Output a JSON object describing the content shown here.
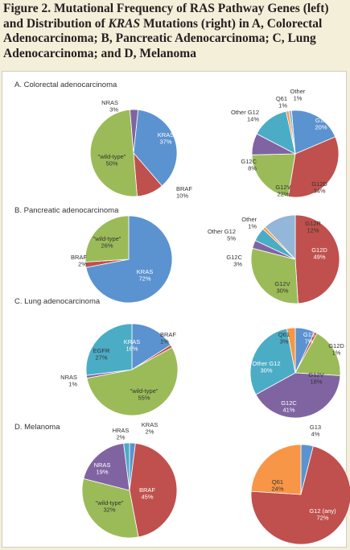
{
  "figure": {
    "title": "Figure 2. Mutational Frequency of RAS Pathway Genes (left) and Distribution of KRAS Mutations (right) in A, Colorectal Adenocarcinoma; B, Pancreatic Adenocarcinoma; C, Lung Adenocarcinoma; and D, Melanoma",
    "title_prefix": "Figure 2. ",
    "title_body": "Mutational Frequency of RAS Pathway Genes (left) and Distribution of ",
    "title_kras": "KRAS",
    "title_tail": " Mutations (right) in A, Colorectal Adenocarcinoma; B, Pancreatic Adenocarcinoma; C, Lung Adenocarcinoma; and D, Melanoma"
  },
  "colors": {
    "blue": "#5b93d0",
    "red": "#c0504d",
    "green": "#9bbb59",
    "purple": "#8064a2",
    "teal": "#4bacc6",
    "orange": "#f79646",
    "lightblue": "#94b6d8"
  },
  "chart_data": [
    {
      "type": "pie",
      "panel": "A. Colorectal adenocarcinoma",
      "side": "left",
      "slices": [
        {
          "label": "KRAS",
          "value": 37
        },
        {
          "label": "BRAF",
          "value": 10
        },
        {
          "label": "\"wild-type\"",
          "value": 50
        },
        {
          "label": "NRAS",
          "value": 3
        }
      ]
    },
    {
      "type": "pie",
      "side": "right",
      "slices": [
        {
          "label": "G13",
          "value": 20
        },
        {
          "label": "G12D",
          "value": 34
        },
        {
          "label": "G12V",
          "value": 22
        },
        {
          "label": "G12C",
          "value": 8
        },
        {
          "label": "Other G12",
          "value": 14
        },
        {
          "label": "Q61",
          "value": 1
        },
        {
          "label": "Other",
          "value": 1
        }
      ]
    },
    {
      "type": "pie",
      "panel": "B. Pancreatic adenocarcinoma",
      "side": "left",
      "slices": [
        {
          "label": "KRAS",
          "value": 72
        },
        {
          "label": "BRAF",
          "value": 2
        },
        {
          "label": "\"wild-type\"",
          "value": 26
        }
      ]
    },
    {
      "type": "pie",
      "side": "right",
      "slices": [
        {
          "label": "G12D",
          "value": 49
        },
        {
          "label": "G12V",
          "value": 30
        },
        {
          "label": "G12C",
          "value": 3
        },
        {
          "label": "Other G12",
          "value": 5
        },
        {
          "label": "Other",
          "value": 1
        },
        {
          "label": "G12R",
          "value": 12
        }
      ]
    },
    {
      "type": "pie",
      "panel": "C. Lung adenocarcinoma",
      "side": "left",
      "slices": [
        {
          "label": "KRAS",
          "value": 16
        },
        {
          "label": "BRAF",
          "value": 1
        },
        {
          "label": "\"wild-type\"",
          "value": 55
        },
        {
          "label": "NRAS",
          "value": 1
        },
        {
          "label": "EGFR",
          "value": 27
        }
      ]
    },
    {
      "type": "pie",
      "side": "right",
      "slices": [
        {
          "label": "G13",
          "value": 7
        },
        {
          "label": "G12D",
          "value": 1
        },
        {
          "label": "G12V",
          "value": 18
        },
        {
          "label": "G12C",
          "value": 41
        },
        {
          "label": "Other G12",
          "value": 30
        },
        {
          "label": "Q61",
          "value": 3
        }
      ]
    },
    {
      "type": "pie",
      "panel": "D. Melanoma",
      "side": "left",
      "slices": [
        {
          "label": "KRAS",
          "value": 2
        },
        {
          "label": "BRAF",
          "value": 45
        },
        {
          "label": "\"wild-type\"",
          "value": 32
        },
        {
          "label": "NRAS",
          "value": 19
        },
        {
          "label": "HRAS",
          "value": 2
        }
      ]
    },
    {
      "type": "pie",
      "side": "right",
      "slices": [
        {
          "label": "G13",
          "value": 4
        },
        {
          "label": "G12 (any)",
          "value": 72
        },
        {
          "label": "Q61",
          "value": 24
        }
      ]
    }
  ]
}
